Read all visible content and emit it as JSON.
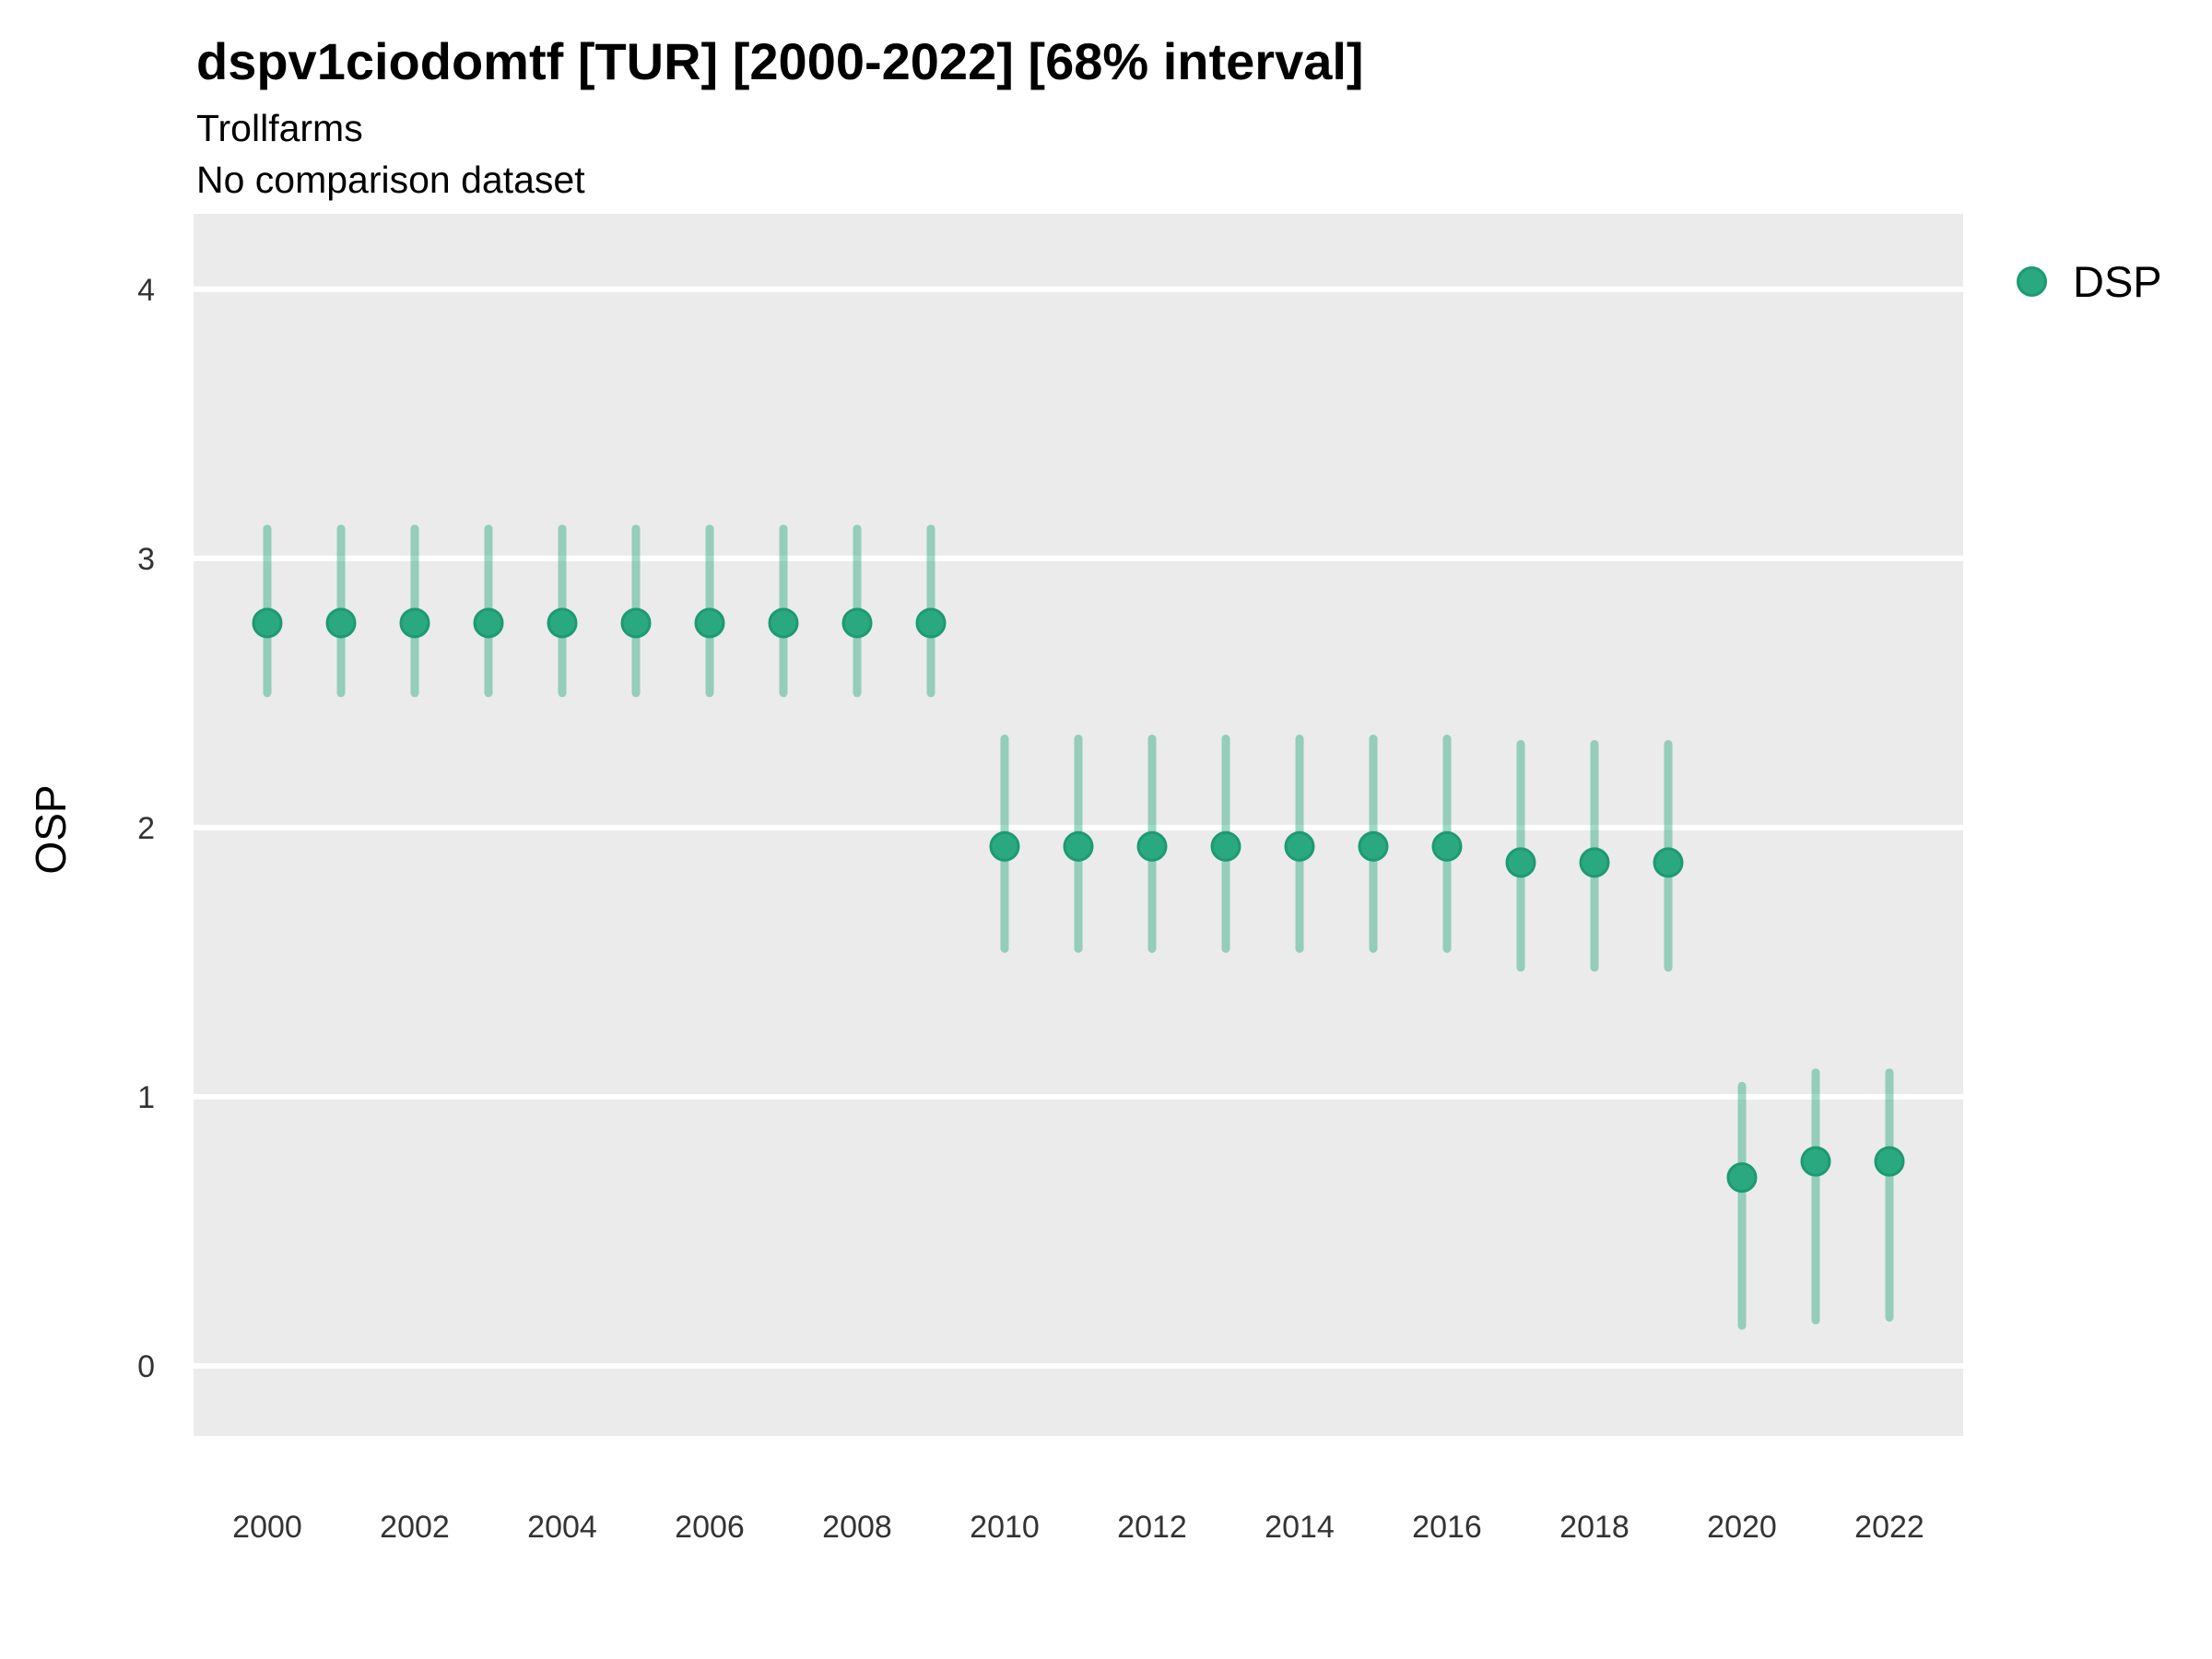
{
  "chart_data": {
    "type": "scatter",
    "title": "dspv1ciodomtf [TUR] [2000-2022] [68% interval]",
    "subtitle": "Trollfarms",
    "note": "No comparison dataset",
    "xlabel": "",
    "ylabel": "OSP",
    "legend": [
      {
        "label": "DSP",
        "color": "#2aa87f"
      }
    ],
    "legend_position": "right",
    "grid": "horizontal-major-only",
    "panel_bg": "#ebebeb",
    "gridline_color": "#ffffff",
    "point_color": "#2aa87f",
    "point_stroke": "#1d9a72",
    "interval_color": "#2aa87f",
    "interval_opacity": 0.45,
    "x_ticks": [
      2000,
      2002,
      2004,
      2006,
      2008,
      2010,
      2012,
      2014,
      2016,
      2018,
      2020,
      2022
    ],
    "y_ticks": [
      0,
      1,
      2,
      3,
      4
    ],
    "xlim": [
      1999,
      2023
    ],
    "ylim": [
      -0.26,
      4.28
    ],
    "series": [
      {
        "name": "DSP",
        "points": [
          {
            "x": 2000,
            "y": 2.76,
            "lo": 2.5,
            "hi": 3.11
          },
          {
            "x": 2001,
            "y": 2.76,
            "lo": 2.5,
            "hi": 3.11
          },
          {
            "x": 2002,
            "y": 2.76,
            "lo": 2.5,
            "hi": 3.11
          },
          {
            "x": 2003,
            "y": 2.76,
            "lo": 2.5,
            "hi": 3.11
          },
          {
            "x": 2004,
            "y": 2.76,
            "lo": 2.5,
            "hi": 3.11
          },
          {
            "x": 2005,
            "y": 2.76,
            "lo": 2.5,
            "hi": 3.11
          },
          {
            "x": 2006,
            "y": 2.76,
            "lo": 2.5,
            "hi": 3.11
          },
          {
            "x": 2007,
            "y": 2.76,
            "lo": 2.5,
            "hi": 3.11
          },
          {
            "x": 2008,
            "y": 2.76,
            "lo": 2.5,
            "hi": 3.11
          },
          {
            "x": 2009,
            "y": 2.76,
            "lo": 2.5,
            "hi": 3.11
          },
          {
            "x": 2010,
            "y": 1.93,
            "lo": 1.55,
            "hi": 2.33
          },
          {
            "x": 2011,
            "y": 1.93,
            "lo": 1.55,
            "hi": 2.33
          },
          {
            "x": 2012,
            "y": 1.93,
            "lo": 1.55,
            "hi": 2.33
          },
          {
            "x": 2013,
            "y": 1.93,
            "lo": 1.55,
            "hi": 2.33
          },
          {
            "x": 2014,
            "y": 1.93,
            "lo": 1.55,
            "hi": 2.33
          },
          {
            "x": 2015,
            "y": 1.93,
            "lo": 1.55,
            "hi": 2.33
          },
          {
            "x": 2016,
            "y": 1.93,
            "lo": 1.55,
            "hi": 2.33
          },
          {
            "x": 2017,
            "y": 1.87,
            "lo": 1.48,
            "hi": 2.31
          },
          {
            "x": 2018,
            "y": 1.87,
            "lo": 1.48,
            "hi": 2.31
          },
          {
            "x": 2019,
            "y": 1.87,
            "lo": 1.48,
            "hi": 2.31
          },
          {
            "x": 2020,
            "y": 0.7,
            "lo": 0.15,
            "hi": 1.04
          },
          {
            "x": 2021,
            "y": 0.76,
            "lo": 0.17,
            "hi": 1.09
          },
          {
            "x": 2022,
            "y": 0.76,
            "lo": 0.18,
            "hi": 1.09
          }
        ]
      }
    ]
  }
}
